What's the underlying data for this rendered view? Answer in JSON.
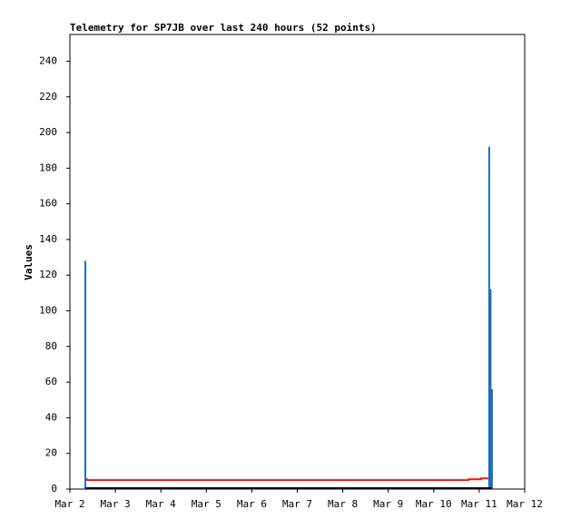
{
  "chart_data": {
    "type": "line",
    "title": "Telemetry for SP7JB over last 240 hours (52 points)",
    "y_label": "Values",
    "xlim": [
      2,
      12
    ],
    "xticks": [
      {
        "value": 2,
        "label": "Mar 2"
      },
      {
        "value": 3,
        "label": "Mar 3"
      },
      {
        "value": 4,
        "label": "Mar 4"
      },
      {
        "value": 5,
        "label": "Mar 5"
      },
      {
        "value": 6,
        "label": "Mar 6"
      },
      {
        "value": 7,
        "label": "Mar 7"
      },
      {
        "value": 8,
        "label": "Mar 8"
      },
      {
        "value": 9,
        "label": "Mar 9"
      },
      {
        "value": 10,
        "label": "Mar 10"
      },
      {
        "value": 11,
        "label": "Mar 11"
      },
      {
        "value": 12,
        "label": "Mar 12"
      }
    ],
    "ylim": [
      0,
      255
    ],
    "yticks": [
      0,
      20,
      40,
      60,
      80,
      100,
      120,
      140,
      160,
      180,
      200,
      220,
      240
    ],
    "series": [
      {
        "type": "bar",
        "color": "#1f6fb4",
        "x": [
          2.34,
          11.22,
          11.25,
          11.28
        ],
        "values": [
          128,
          192,
          112,
          56
        ]
      },
      {
        "type": "line",
        "color": "#000000",
        "x": [
          2.34,
          11.28
        ],
        "values": [
          0.5,
          0.5
        ]
      },
      {
        "type": "line",
        "color": "#e8170f",
        "x": [
          2.36,
          2.38,
          2.4,
          10.76,
          10.76,
          11.04,
          11.04,
          11.2
        ],
        "values": [
          6,
          5,
          5,
          5,
          5.5,
          5.5,
          6,
          6
        ]
      }
    ]
  }
}
